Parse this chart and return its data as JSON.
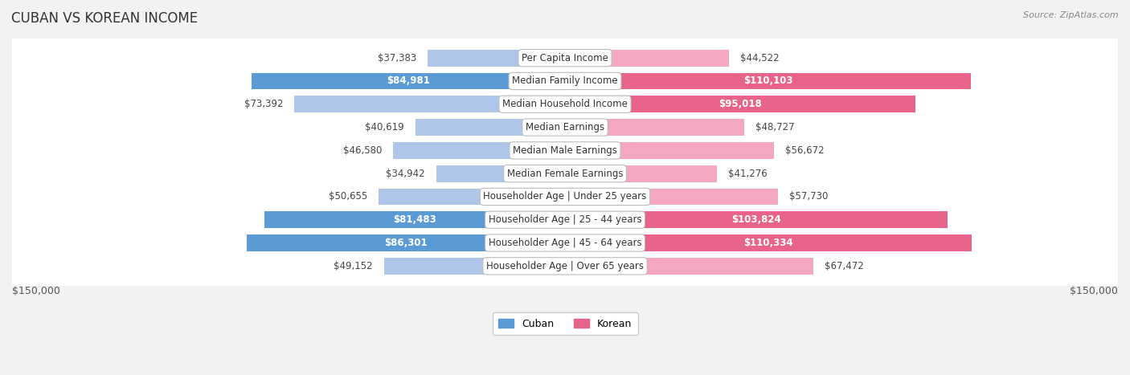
{
  "title": "CUBAN VS KOREAN INCOME",
  "source": "Source: ZipAtlas.com",
  "max_val": 150000,
  "categories": [
    "Per Capita Income",
    "Median Family Income",
    "Median Household Income",
    "Median Earnings",
    "Median Male Earnings",
    "Median Female Earnings",
    "Householder Age | Under 25 years",
    "Householder Age | 25 - 44 years",
    "Householder Age | 45 - 64 years",
    "Householder Age | Over 65 years"
  ],
  "cuban_values": [
    37383,
    84981,
    73392,
    40619,
    46580,
    34942,
    50655,
    81483,
    86301,
    49152
  ],
  "korean_values": [
    44522,
    110103,
    95018,
    48727,
    56672,
    41276,
    57730,
    103824,
    110334,
    67472
  ],
  "cuban_color_dark": "#5B9BD5",
  "cuban_color_light": "#AEC6E8",
  "korean_color_dark": "#E8638A",
  "korean_color_light": "#F4A7C0",
  "bg_color": "#F2F2F2",
  "row_bg": "#FFFFFF",
  "row_bg2": "#F7F7F7",
  "label_fontsize": 8.5,
  "title_fontsize": 12,
  "source_fontsize": 8,
  "legend_fontsize": 9,
  "dark_threshold": 0.5
}
